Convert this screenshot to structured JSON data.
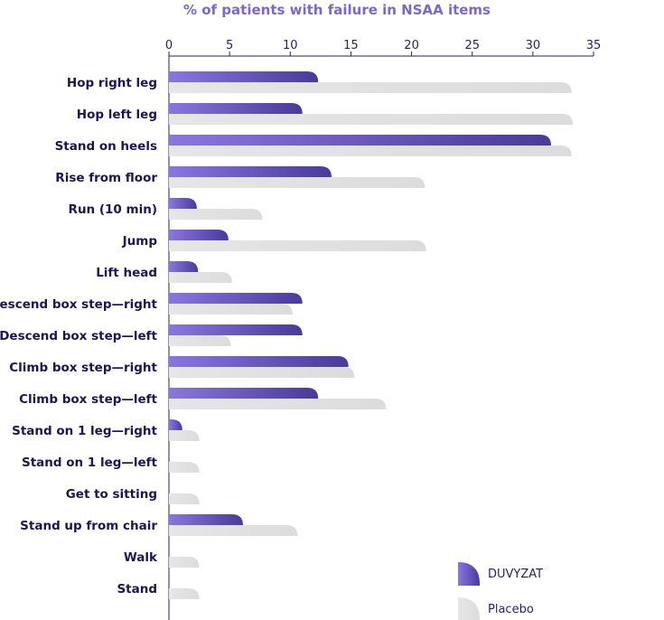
{
  "chart_data": {
    "type": "bar",
    "orientation": "horizontal",
    "title": "% of patients with failure in NSAA items",
    "xlim": [
      0,
      35
    ],
    "xticks": [
      "0",
      "5",
      "10",
      "15",
      "20",
      "25",
      "30",
      "35"
    ],
    "grid": false,
    "legend_position": "bottom-right",
    "categories": [
      "Hop right leg",
      "Hop left leg",
      "Stand on heels",
      "Rise from floor",
      "Run (10 min)",
      "Jump",
      "Lift head",
      "Descend box step—right",
      "Descend box step—left",
      "Climb box step—right",
      "Climb box step—left",
      "Stand on 1 leg—right",
      "Stand on 1 leg—left",
      "Get to sitting",
      "Stand up from chair",
      "Walk",
      "Stand"
    ],
    "series": [
      {
        "name": "DUVYZAT",
        "color": "#6b55c3",
        "values": [
          12.3,
          11.0,
          31.5,
          13.4,
          2.3,
          4.9,
          2.4,
          11.0,
          11.0,
          14.8,
          12.3,
          1.1,
          0,
          0,
          6.1,
          0,
          0
        ]
      },
      {
        "name": "Placebo",
        "color": "#e1e1e1",
        "values": [
          33.2,
          33.3,
          33.2,
          21.1,
          7.7,
          21.2,
          5.2,
          10.2,
          5.1,
          15.3,
          17.9,
          2.5,
          2.5,
          2.5,
          10.6,
          2.5,
          2.5
        ]
      }
    ]
  }
}
